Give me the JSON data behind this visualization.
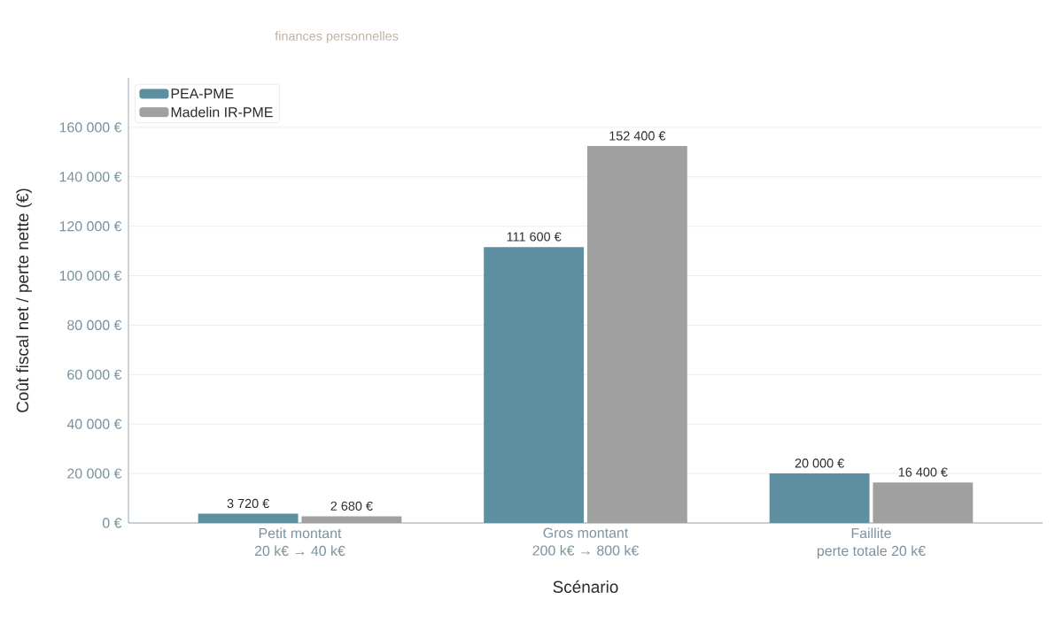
{
  "chart_data": {
    "type": "bar",
    "xlabel": "Scénario",
    "ylabel": "Coût fiscal net / perte nette (€)",
    "annotations": [
      "finances personnelles"
    ],
    "categories": [
      "Petit montant\n20 k€ → 40 k€",
      "Gros montant\n200 k€ → 800 k€",
      "Faillite\nperte totale 20 k€"
    ],
    "series": [
      {
        "name": "PEA-PME",
        "color": "#5d8fa0",
        "values": [
          3720,
          111600,
          20000
        ],
        "value_labels": [
          "3 720 €",
          "111 600 €",
          "20 000 €"
        ]
      },
      {
        "name": "Madelin IR-PME",
        "color": "#a0a0a0",
        "values": [
          2680,
          152400,
          16400
        ],
        "value_labels": [
          "2 680 €",
          "152 400 €",
          "16 400 €"
        ]
      }
    ],
    "ylim": [
      0,
      180000
    ],
    "yticks": [
      {
        "value": 0,
        "label": "0 €"
      },
      {
        "value": 20000,
        "label": "20 000 €"
      },
      {
        "value": 40000,
        "label": "40 000 €"
      },
      {
        "value": 60000,
        "label": "60 000 €"
      },
      {
        "value": 80000,
        "label": "80 000 €"
      },
      {
        "value": 100000,
        "label": "100 000 €"
      },
      {
        "value": 120000,
        "label": "120 000 €"
      },
      {
        "value": 140000,
        "label": "140 000 €"
      },
      {
        "value": 160000,
        "label": "160 000 €"
      }
    ],
    "grid": "y",
    "legend": "top left"
  }
}
